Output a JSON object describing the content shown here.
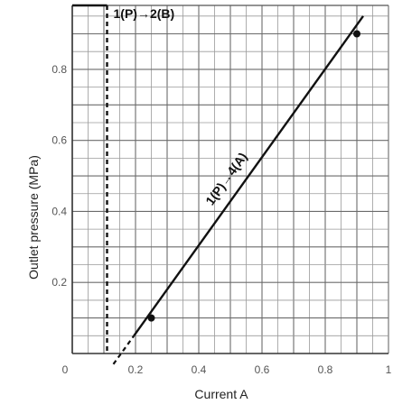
{
  "chart_data": {
    "type": "line",
    "title": "",
    "xlabel": "Current A",
    "ylabel": "Outlet pressure (MPa)",
    "xlim": [
      0,
      1
    ],
    "ylim": [
      0,
      0.98
    ],
    "x_ticks": [
      0,
      0.2,
      0.4,
      0.6,
      0.8,
      1
    ],
    "x_tick_labels": [
      "0",
      "0.2",
      "0.4",
      "0.6",
      "0.8",
      "1"
    ],
    "y_ticks": [
      0.2,
      0.4,
      0.6,
      0.8
    ],
    "y_tick_labels": [
      "0.2",
      "0.4",
      "0.6",
      "0.8"
    ],
    "grid": true,
    "series": [
      {
        "name": "1(P)→4(A)",
        "style": "solid",
        "color": "#111111",
        "x": [
          0.195,
          0.92
        ],
        "y": [
          0.05,
          0.95
        ],
        "dashed_extension": {
          "x": [
            0.13,
            0.195
          ],
          "y": [
            -0.03,
            0.05
          ]
        },
        "markers": [
          {
            "x": 0.25,
            "y": 0.1
          },
          {
            "x": 0.9,
            "y": 0.9
          }
        ]
      },
      {
        "name": "1(P)→2(B)",
        "style": "dashed",
        "color": "#111111",
        "x": [
          0,
          0.11,
          0.11
        ],
        "y": [
          0.98,
          0.98,
          0
        ]
      }
    ],
    "annotations": [
      {
        "text": "1(P)→2(B)",
        "x": 0.13,
        "y": 0.97
      },
      {
        "text": "1(P)→4(A)",
        "x": 0.55,
        "y": 0.5
      }
    ]
  }
}
